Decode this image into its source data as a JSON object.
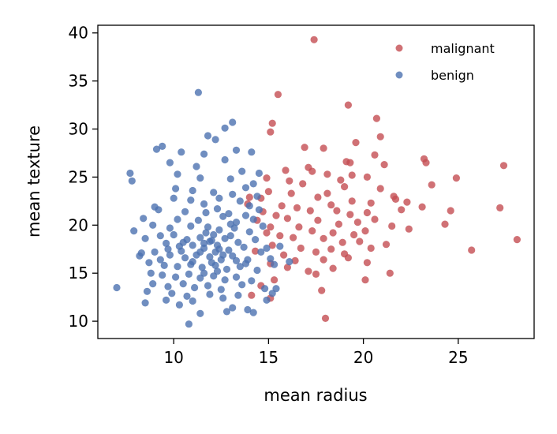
{
  "chart_data": {
    "type": "scatter",
    "xlabel": "mean radius",
    "ylabel": "mean texture",
    "xlim": [
      6.0,
      29.0
    ],
    "ylim": [
      8.2,
      40.8
    ],
    "xticks": [
      10,
      15,
      20,
      25
    ],
    "yticks": [
      10,
      15,
      20,
      25,
      30,
      35,
      40
    ],
    "legend_position": "top-right",
    "grid": false,
    "series": [
      {
        "name": "malignant",
        "color": "#c44e52",
        "points": [
          [
            17.4,
            39.3
          ],
          [
            15.5,
            33.6
          ],
          [
            19.2,
            32.5
          ],
          [
            20.7,
            31.1
          ],
          [
            15.2,
            30.6
          ],
          [
            15.1,
            29.7
          ],
          [
            20.9,
            29.2
          ],
          [
            16.9,
            28.1
          ],
          [
            19.6,
            28.6
          ],
          [
            17.9,
            28.0
          ],
          [
            20.6,
            27.3
          ],
          [
            19.1,
            26.6
          ],
          [
            19.3,
            26.5
          ],
          [
            21.1,
            26.3
          ],
          [
            23.2,
            26.9
          ],
          [
            27.4,
            26.2
          ],
          [
            23.3,
            26.5
          ],
          [
            17.1,
            26.0
          ],
          [
            15.9,
            25.7
          ],
          [
            18.1,
            25.3
          ],
          [
            19.4,
            25.2
          ],
          [
            24.9,
            24.9
          ],
          [
            20.2,
            25.0
          ],
          [
            17.3,
            25.6
          ],
          [
            16.8,
            24.3
          ],
          [
            14.9,
            24.9
          ],
          [
            18.8,
            24.7
          ],
          [
            20.9,
            23.8
          ],
          [
            23.6,
            24.2
          ],
          [
            15.0,
            23.5
          ],
          [
            16.2,
            23.3
          ],
          [
            17.6,
            22.9
          ],
          [
            18.1,
            23.3
          ],
          [
            19.4,
            22.5
          ],
          [
            20.4,
            22.3
          ],
          [
            21.7,
            22.7
          ],
          [
            14.6,
            22.8
          ],
          [
            14.0,
            22.9
          ],
          [
            15.7,
            22.0
          ],
          [
            16.5,
            21.8
          ],
          [
            17.2,
            21.5
          ],
          [
            18.6,
            21.5
          ],
          [
            19.3,
            21.1
          ],
          [
            20.2,
            21.3
          ],
          [
            22.0,
            21.6
          ],
          [
            23.1,
            21.9
          ],
          [
            24.6,
            21.5
          ],
          [
            27.2,
            21.8
          ],
          [
            15.4,
            21.0
          ],
          [
            16.0,
            20.7
          ],
          [
            17.6,
            20.5
          ],
          [
            18.7,
            20.1
          ],
          [
            19.7,
            20.3
          ],
          [
            20.6,
            20.6
          ],
          [
            21.5,
            19.9
          ],
          [
            24.3,
            20.1
          ],
          [
            14.4,
            20.5
          ],
          [
            15.1,
            19.8
          ],
          [
            16.6,
            19.8
          ],
          [
            17.3,
            19.4
          ],
          [
            18.4,
            19.2
          ],
          [
            19.5,
            19.0
          ],
          [
            20.1,
            19.4
          ],
          [
            22.4,
            19.6
          ],
          [
            28.1,
            18.5
          ],
          [
            14.9,
            19.2
          ],
          [
            15.6,
            18.9
          ],
          [
            16.3,
            18.7
          ],
          [
            17.9,
            18.6
          ],
          [
            18.9,
            18.2
          ],
          [
            19.8,
            18.3
          ],
          [
            21.2,
            18.0
          ],
          [
            15.2,
            17.9
          ],
          [
            16.7,
            17.6
          ],
          [
            17.5,
            17.2
          ],
          [
            18.3,
            17.5
          ],
          [
            19.0,
            17.0
          ],
          [
            20.4,
            17.6
          ],
          [
            25.7,
            17.4
          ],
          [
            14.3,
            17.3
          ],
          [
            15.8,
            16.9
          ],
          [
            16.4,
            16.3
          ],
          [
            17.9,
            16.4
          ],
          [
            19.2,
            16.6
          ],
          [
            20.2,
            16.1
          ],
          [
            15.1,
            16.0
          ],
          [
            16.0,
            15.6
          ],
          [
            17.1,
            15.2
          ],
          [
            18.4,
            15.5
          ],
          [
            21.4,
            15.0
          ],
          [
            15.3,
            14.3
          ],
          [
            17.5,
            14.9
          ],
          [
            20.1,
            14.3
          ],
          [
            14.6,
            13.7
          ],
          [
            17.8,
            13.2
          ],
          [
            14.1,
            12.7
          ],
          [
            15.1,
            12.4
          ],
          [
            18.0,
            10.3
          ],
          [
            13.9,
            22.2
          ],
          [
            14.7,
            21.4
          ],
          [
            16.1,
            24.6
          ],
          [
            19.0,
            24.0
          ],
          [
            21.6,
            23.0
          ],
          [
            18.3,
            22.1
          ],
          [
            22.3,
            22.4
          ]
        ]
      },
      {
        "name": "benign",
        "color": "#4c72b0",
        "points": [
          [
            11.3,
            33.8
          ],
          [
            13.1,
            30.7
          ],
          [
            11.8,
            29.3
          ],
          [
            12.7,
            30.1
          ],
          [
            12.2,
            28.9
          ],
          [
            9.4,
            28.2
          ],
          [
            9.1,
            27.9
          ],
          [
            10.4,
            27.6
          ],
          [
            13.3,
            27.8
          ],
          [
            14.1,
            27.6
          ],
          [
            11.6,
            27.4
          ],
          [
            9.8,
            26.5
          ],
          [
            10.2,
            25.3
          ],
          [
            7.7,
            25.4
          ],
          [
            7.8,
            24.6
          ],
          [
            11.2,
            26.1
          ],
          [
            12.7,
            26.8
          ],
          [
            13.6,
            25.6
          ],
          [
            14.5,
            25.4
          ],
          [
            13.0,
            24.8
          ],
          [
            11.4,
            24.9
          ],
          [
            10.1,
            23.8
          ],
          [
            12.1,
            23.4
          ],
          [
            13.8,
            23.9
          ],
          [
            14.2,
            24.3
          ],
          [
            10.9,
            22.6
          ],
          [
            11.6,
            22.2
          ],
          [
            12.4,
            22.8
          ],
          [
            13.5,
            22.5
          ],
          [
            9.2,
            21.6
          ],
          [
            9.0,
            21.9
          ],
          [
            10.6,
            21.4
          ],
          [
            11.7,
            21.3
          ],
          [
            12.9,
            21.2
          ],
          [
            13.8,
            21.0
          ],
          [
            8.4,
            20.7
          ],
          [
            10.2,
            20.6
          ],
          [
            11.3,
            20.5
          ],
          [
            12.6,
            20.9
          ],
          [
            13.3,
            20.3
          ],
          [
            14.2,
            20.6
          ],
          [
            8.9,
            20.0
          ],
          [
            9.8,
            19.7
          ],
          [
            10.9,
            19.9
          ],
          [
            11.8,
            19.8
          ],
          [
            12.4,
            19.5
          ],
          [
            13.2,
            19.7
          ],
          [
            14.0,
            19.3
          ],
          [
            14.7,
            19.9
          ],
          [
            8.5,
            18.6
          ],
          [
            9.3,
            18.9
          ],
          [
            10.0,
            19.0
          ],
          [
            10.7,
            18.5
          ],
          [
            11.4,
            18.7
          ],
          [
            12.0,
            18.4
          ],
          [
            12.7,
            18.6
          ],
          [
            13.4,
            18.2
          ],
          [
            14.3,
            18.5
          ],
          [
            9.6,
            18.1
          ],
          [
            10.3,
            17.8
          ],
          [
            11.0,
            17.9
          ],
          [
            11.6,
            17.6
          ],
          [
            12.3,
            17.9
          ],
          [
            12.9,
            17.4
          ],
          [
            13.7,
            17.7
          ],
          [
            14.6,
            17.2
          ],
          [
            8.2,
            16.8
          ],
          [
            9.0,
            17.2
          ],
          [
            9.8,
            16.9
          ],
          [
            10.6,
            16.6
          ],
          [
            11.2,
            16.9
          ],
          [
            11.9,
            16.7
          ],
          [
            12.5,
            16.4
          ],
          [
            13.1,
            16.8
          ],
          [
            13.9,
            16.4
          ],
          [
            8.7,
            16.1
          ],
          [
            9.5,
            15.8
          ],
          [
            10.2,
            15.7
          ],
          [
            10.9,
            15.9
          ],
          [
            11.5,
            15.6
          ],
          [
            12.2,
            15.8
          ],
          [
            12.8,
            15.4
          ],
          [
            13.5,
            15.7
          ],
          [
            14.4,
            15.3
          ],
          [
            15.3,
            15.9
          ],
          [
            8.8,
            15.0
          ],
          [
            9.4,
            14.8
          ],
          [
            10.1,
            14.6
          ],
          [
            10.8,
            14.9
          ],
          [
            11.4,
            14.5
          ],
          [
            12.1,
            14.7
          ],
          [
            12.7,
            14.3
          ],
          [
            13.3,
            14.6
          ],
          [
            14.1,
            14.2
          ],
          [
            8.9,
            13.9
          ],
          [
            9.7,
            13.6
          ],
          [
            10.5,
            13.9
          ],
          [
            11.1,
            13.5
          ],
          [
            11.8,
            13.7
          ],
          [
            12.5,
            13.3
          ],
          [
            13.6,
            13.8
          ],
          [
            14.8,
            13.4
          ],
          [
            7.0,
            13.5
          ],
          [
            8.6,
            13.1
          ],
          [
            9.9,
            12.9
          ],
          [
            10.7,
            12.6
          ],
          [
            11.9,
            12.8
          ],
          [
            12.6,
            12.4
          ],
          [
            13.4,
            12.7
          ],
          [
            14.9,
            12.2
          ],
          [
            8.5,
            11.9
          ],
          [
            9.6,
            12.2
          ],
          [
            10.3,
            11.7
          ],
          [
            11.0,
            12.1
          ],
          [
            13.1,
            11.4
          ],
          [
            13.9,
            11.2
          ],
          [
            11.4,
            10.8
          ],
          [
            12.8,
            11.0
          ],
          [
            14.2,
            10.9
          ],
          [
            10.8,
            9.7
          ],
          [
            11.6,
            18.1
          ],
          [
            12.2,
            17.2
          ],
          [
            11.7,
            19.2
          ],
          [
            12.0,
            16.1
          ],
          [
            13.0,
            18.9
          ],
          [
            12.4,
            17.5
          ],
          [
            11.9,
            18.3
          ],
          [
            12.6,
            16.9
          ],
          [
            12.1,
            19.0
          ],
          [
            11.4,
            17.2
          ],
          [
            13.3,
            16.3
          ],
          [
            10.5,
            18.2
          ],
          [
            11.0,
            16.2
          ],
          [
            13.8,
            16.0
          ],
          [
            12.3,
            15.2
          ],
          [
            11.6,
            15.0
          ],
          [
            10.4,
            17.3
          ],
          [
            9.7,
            17.5
          ],
          [
            13.0,
            20.1
          ],
          [
            14.5,
            21.6
          ],
          [
            14.9,
            17.6
          ],
          [
            14.0,
            22.0
          ],
          [
            15.1,
            16.5
          ],
          [
            15.6,
            17.8
          ],
          [
            15.4,
            13.4
          ],
          [
            15.2,
            12.9
          ],
          [
            16.1,
            16.2
          ],
          [
            9.3,
            16.4
          ],
          [
            8.3,
            17.1
          ],
          [
            7.9,
            19.4
          ],
          [
            10.0,
            22.8
          ],
          [
            12.3,
            21.7
          ],
          [
            13.1,
            23.2
          ],
          [
            14.4,
            23.0
          ],
          [
            11.0,
            23.6
          ]
        ]
      }
    ]
  }
}
